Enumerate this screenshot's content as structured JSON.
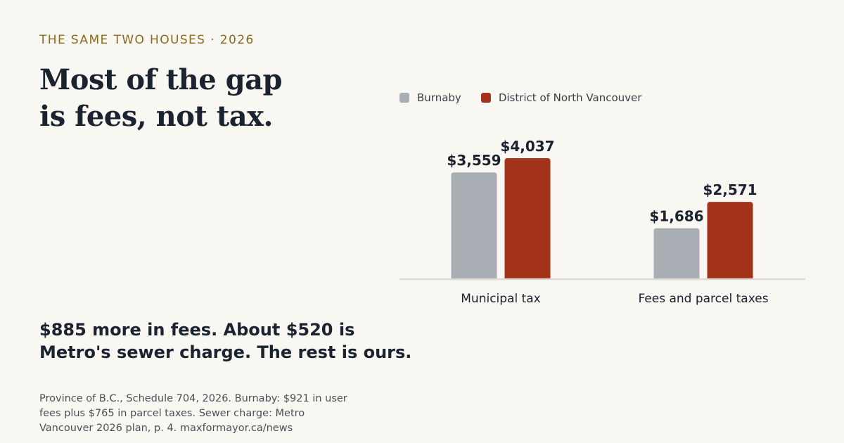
{
  "eyebrow": "THE SAME TWO HOUSES · 2026",
  "headline": {
    "line1": "Most of the gap",
    "line2": "is fees, not tax."
  },
  "callout": {
    "line1": "$885 more in fees. About $520 is",
    "line2": "Metro's sewer charge. The rest is ours."
  },
  "source": {
    "line1": "Province of B.C., Schedule 704, 2026. Burnaby: $921 in user",
    "line2": "fees plus $765 in parcel taxes. Sewer charge: Metro",
    "line3": "Vancouver 2026 plan, p. 4. maxformayor.ca/news"
  },
  "colors": {
    "burnaby": "#a8aeb4",
    "north_vancouver": "#a3321b",
    "axis": "#dcdad4"
  },
  "chart_data": {
    "type": "bar",
    "categories": [
      "Municipal tax",
      "Fees and parcel taxes"
    ],
    "series": [
      {
        "name": "Burnaby",
        "values": [
          3559,
          1686
        ],
        "labels": [
          "$3,559",
          "$1,686"
        ],
        "color": "#a8aeb4"
      },
      {
        "name": "District of North Vancouver",
        "values": [
          4037,
          2571
        ],
        "labels": [
          "$4,037",
          "$2,571"
        ],
        "color": "#a3321b"
      }
    ],
    "ylim": [
      0,
      4037
    ],
    "legend": "top-left",
    "grid": false,
    "xlabel": "",
    "ylabel": ""
  }
}
